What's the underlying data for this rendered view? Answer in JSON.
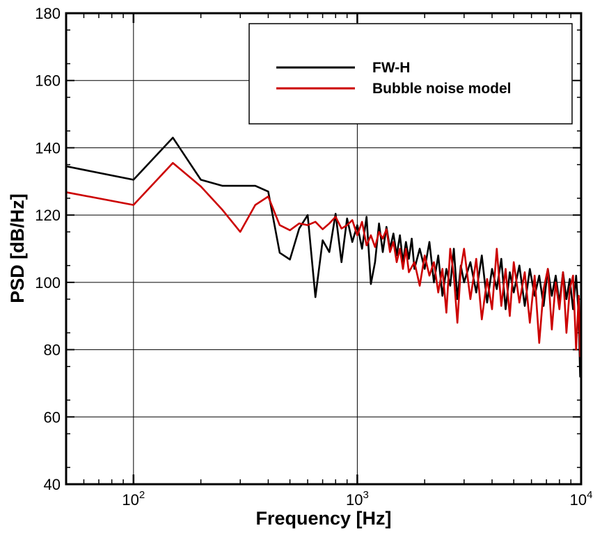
{
  "chart_data": {
    "type": "line",
    "xlabel": "Frequency [Hz]",
    "ylabel": "PSD [dB/Hz]",
    "xscale": "log",
    "xlim": [
      50,
      10000
    ],
    "ylim": [
      40,
      180
    ],
    "x_ticks": [
      {
        "value": 100,
        "base": "10",
        "exp": "2"
      },
      {
        "value": 1000,
        "base": "10",
        "exp": "3"
      },
      {
        "value": 10000,
        "base": "10",
        "exp": "4"
      }
    ],
    "y_ticks": [
      "40",
      "60",
      "80",
      "100",
      "120",
      "140",
      "160",
      "180"
    ],
    "grid": true,
    "legend_position": "top-right",
    "series": [
      {
        "name": "FW-H",
        "color": "#000000",
        "points": [
          [
            50,
            134.5
          ],
          [
            100,
            130.5
          ],
          [
            150,
            143
          ],
          [
            200,
            130.5
          ],
          [
            250,
            128.7
          ],
          [
            300,
            128.7
          ],
          [
            350,
            128.7
          ],
          [
            400,
            127
          ],
          [
            450,
            108.8
          ],
          [
            500,
            106.8
          ],
          [
            550,
            116
          ],
          [
            600,
            120
          ],
          [
            650,
            95.6
          ],
          [
            700,
            112.5
          ],
          [
            750,
            109
          ],
          [
            800,
            120.4
          ],
          [
            850,
            106
          ],
          [
            900,
            119
          ],
          [
            950,
            112
          ],
          [
            1000,
            117
          ],
          [
            1050,
            110
          ],
          [
            1100,
            119.5
          ],
          [
            1150,
            99.5
          ],
          [
            1200,
            106
          ],
          [
            1250,
            117.5
          ],
          [
            1300,
            109
          ],
          [
            1350,
            116.5
          ],
          [
            1400,
            110
          ],
          [
            1450,
            114.5
          ],
          [
            1500,
            108
          ],
          [
            1550,
            114
          ],
          [
            1600,
            106
          ],
          [
            1650,
            112
          ],
          [
            1700,
            107
          ],
          [
            1750,
            113
          ],
          [
            1800,
            104
          ],
          [
            1900,
            110
          ],
          [
            2000,
            104
          ],
          [
            2100,
            112
          ],
          [
            2200,
            100
          ],
          [
            2300,
            108
          ],
          [
            2400,
            96
          ],
          [
            2500,
            104
          ],
          [
            2600,
            99
          ],
          [
            2700,
            110
          ],
          [
            2800,
            95
          ],
          [
            2900,
            105
          ],
          [
            3000,
            100
          ],
          [
            3200,
            106
          ],
          [
            3400,
            97
          ],
          [
            3600,
            108
          ],
          [
            3800,
            94
          ],
          [
            4000,
            104
          ],
          [
            4200,
            98
          ],
          [
            4400,
            107
          ],
          [
            4600,
            92
          ],
          [
            4800,
            103
          ],
          [
            5000,
            97
          ],
          [
            5300,
            105
          ],
          [
            5600,
            93
          ],
          [
            5900,
            104
          ],
          [
            6200,
            96
          ],
          [
            6500,
            102
          ],
          [
            6800,
            93
          ],
          [
            7100,
            104
          ],
          [
            7400,
            96
          ],
          [
            7700,
            102
          ],
          [
            8000,
            94
          ],
          [
            8300,
            103
          ],
          [
            8600,
            95
          ],
          [
            8900,
            101
          ],
          [
            9200,
            92
          ],
          [
            9500,
            102
          ],
          [
            9750,
            90
          ],
          [
            9900,
            72
          ],
          [
            10000,
            101
          ]
        ]
      },
      {
        "name": "Bubble noise model",
        "color": "#cc0000",
        "points": [
          [
            50,
            126.8
          ],
          [
            100,
            123
          ],
          [
            150,
            135.5
          ],
          [
            200,
            128.5
          ],
          [
            250,
            121.5
          ],
          [
            300,
            115
          ],
          [
            350,
            123
          ],
          [
            400,
            125.5
          ],
          [
            450,
            117
          ],
          [
            500,
            115.5
          ],
          [
            550,
            117.5
          ],
          [
            600,
            117
          ],
          [
            650,
            118
          ],
          [
            700,
            115.8
          ],
          [
            750,
            117.5
          ],
          [
            800,
            119.5
          ],
          [
            850,
            116
          ],
          [
            900,
            117
          ],
          [
            950,
            118.5
          ],
          [
            1000,
            114
          ],
          [
            1050,
            118
          ],
          [
            1100,
            111
          ],
          [
            1150,
            114
          ],
          [
            1200,
            110.5
          ],
          [
            1250,
            115
          ],
          [
            1300,
            113
          ],
          [
            1350,
            115.8
          ],
          [
            1400,
            109
          ],
          [
            1450,
            112
          ],
          [
            1500,
            106
          ],
          [
            1550,
            110
          ],
          [
            1600,
            104
          ],
          [
            1650,
            110
          ],
          [
            1700,
            103
          ],
          [
            1800,
            106
          ],
          [
            1900,
            99
          ],
          [
            2000,
            108
          ],
          [
            2100,
            102
          ],
          [
            2200,
            106
          ],
          [
            2300,
            97
          ],
          [
            2400,
            104
          ],
          [
            2500,
            91
          ],
          [
            2600,
            110
          ],
          [
            2700,
            102
          ],
          [
            2800,
            88
          ],
          [
            2900,
            104
          ],
          [
            3000,
            110
          ],
          [
            3200,
            95
          ],
          [
            3400,
            107
          ],
          [
            3600,
            89
          ],
          [
            3800,
            101
          ],
          [
            4000,
            92
          ],
          [
            4200,
            110
          ],
          [
            4400,
            93
          ],
          [
            4600,
            104
          ],
          [
            4800,
            90
          ],
          [
            5000,
            106
          ],
          [
            5300,
            94
          ],
          [
            5600,
            103
          ],
          [
            5900,
            88
          ],
          [
            6200,
            102
          ],
          [
            6500,
            82
          ],
          [
            6800,
            98
          ],
          [
            7100,
            104
          ],
          [
            7400,
            86
          ],
          [
            7700,
            100
          ],
          [
            8000,
            92
          ],
          [
            8300,
            103
          ],
          [
            8600,
            85
          ],
          [
            8900,
            98
          ],
          [
            9200,
            102
          ],
          [
            9500,
            80
          ],
          [
            9750,
            96
          ],
          [
            9900,
            78
          ],
          [
            10000,
            88
          ]
        ]
      }
    ]
  }
}
